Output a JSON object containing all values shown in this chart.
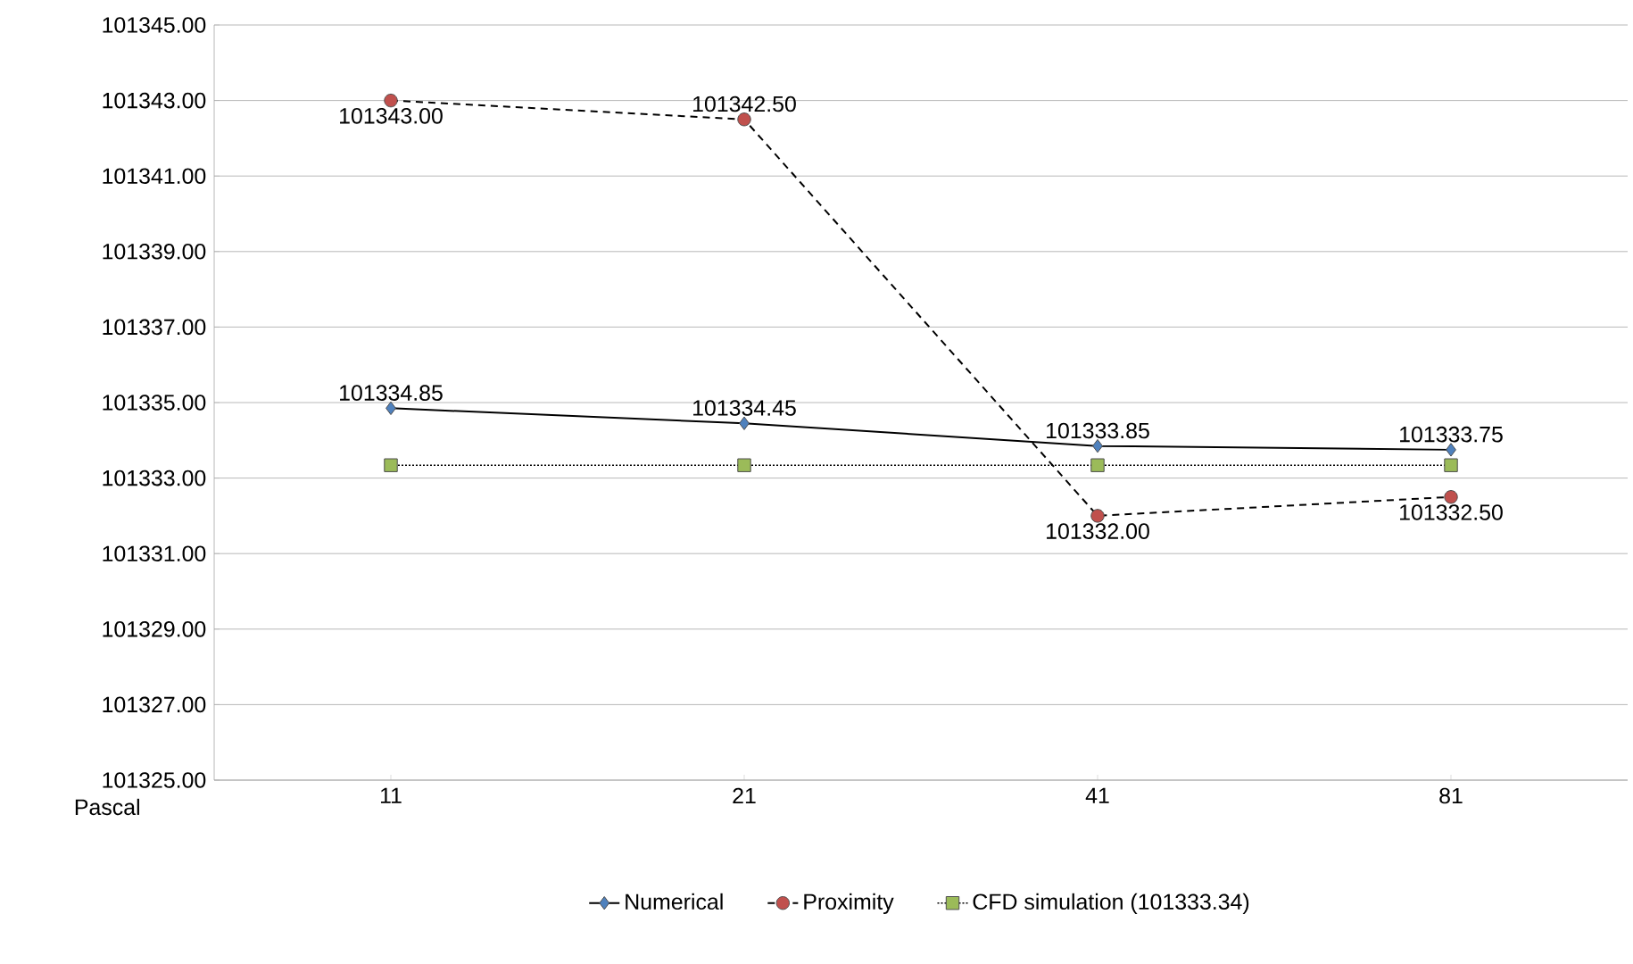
{
  "chart_data": {
    "type": "line",
    "xlabel": "Pascal",
    "categories": [
      "11",
      "21",
      "41",
      "81"
    ],
    "series": [
      {
        "name": "Numerical",
        "color": "#4f81bd",
        "marker": "diamond",
        "line_style": "solid",
        "values": [
          101334.85,
          101334.45,
          101333.85,
          101333.75
        ],
        "value_labels": [
          "101334.85",
          "101334.45",
          "101333.85",
          "101333.75"
        ]
      },
      {
        "name": "Proximity",
        "color": "#c0504d",
        "marker": "circle",
        "line_style": "dashed",
        "values": [
          101343.0,
          101342.5,
          101332.0,
          101332.5
        ],
        "value_labels": [
          "101343.00",
          "101342.50",
          "101332.00",
          "101332.50"
        ]
      },
      {
        "name": "CFD simulation (101333.34)",
        "color": "#9bbb59",
        "marker": "square",
        "line_style": "dotted",
        "values": [
          101333.34,
          101333.34,
          101333.34,
          101333.34
        ]
      }
    ],
    "ylim": [
      101325,
      101345
    ],
    "yticks": [
      {
        "value": 101325,
        "label": "101325.00"
      },
      {
        "value": 101327,
        "label": "101327.00"
      },
      {
        "value": 101329,
        "label": "101329.00"
      },
      {
        "value": 101331,
        "label": "101331.00"
      },
      {
        "value": 101333,
        "label": "101333.00"
      },
      {
        "value": 101335,
        "label": "101335.00"
      },
      {
        "value": 101337,
        "label": "101337.00"
      },
      {
        "value": 101339,
        "label": "101339.00"
      },
      {
        "value": 101341,
        "label": "101341.00"
      },
      {
        "value": 101343,
        "label": "101343.00"
      },
      {
        "value": 101345,
        "label": "101345.00"
      }
    ],
    "grid": "y",
    "legend": "bottom"
  }
}
